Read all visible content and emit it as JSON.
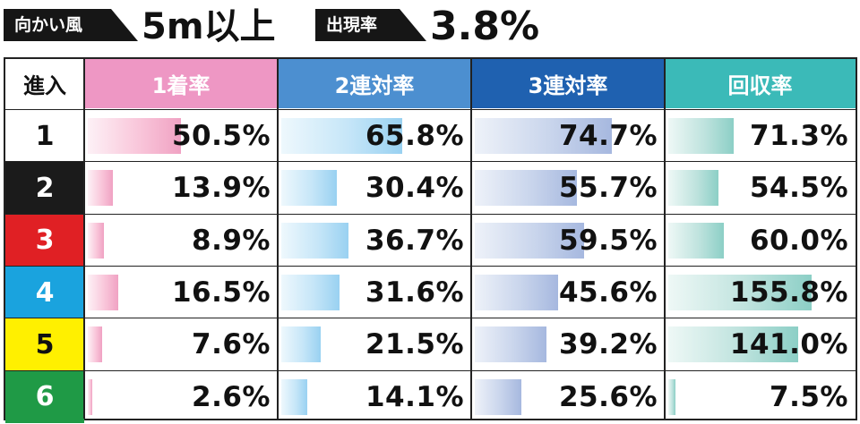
{
  "header": {
    "condition_label": "向かい風",
    "condition_value": "5m以上",
    "rate_label": "出現率",
    "rate_value": "3.8%"
  },
  "colors": {
    "win_header": "#ee97c4",
    "quinella_header": "#4c8fd0",
    "trio_header": "#1f61b0",
    "recovery_header": "#3bbab8",
    "lane_colors": [
      "#ffffff",
      "#1b1b1b",
      "#e02024",
      "#1aa3de",
      "#fff000",
      "#1f9a46"
    ],
    "lane_text_colors": [
      "#111111",
      "#ffffff",
      "#ffffff",
      "#ffffff",
      "#111111",
      "#ffffff"
    ]
  },
  "chart_data": {
    "type": "table",
    "columns": [
      "進入",
      "1着率",
      "2連対率",
      "3連対率",
      "回収率"
    ],
    "rows": [
      {
        "entry": "1",
        "win": "50.5%",
        "quinella": "65.8%",
        "trio": "74.7%",
        "recovery": "71.3%"
      },
      {
        "entry": "2",
        "win": "13.9%",
        "quinella": "30.4%",
        "trio": "55.7%",
        "recovery": "54.5%"
      },
      {
        "entry": "3",
        "win": "8.9%",
        "quinella": "36.7%",
        "trio": "59.5%",
        "recovery": "60.0%"
      },
      {
        "entry": "4",
        "win": "16.5%",
        "quinella": "31.6%",
        "trio": "45.6%",
        "recovery": "155.8%"
      },
      {
        "entry": "5",
        "win": "7.6%",
        "quinella": "21.5%",
        "trio": "39.2%",
        "recovery": "141.0%"
      },
      {
        "entry": "6",
        "win": "2.6%",
        "quinella": "14.1%",
        "trio": "25.6%",
        "recovery": "7.5%"
      }
    ],
    "bar_scale_max": {
      "win": 100,
      "quinella": 100,
      "trio": 100,
      "recovery": 200
    }
  }
}
